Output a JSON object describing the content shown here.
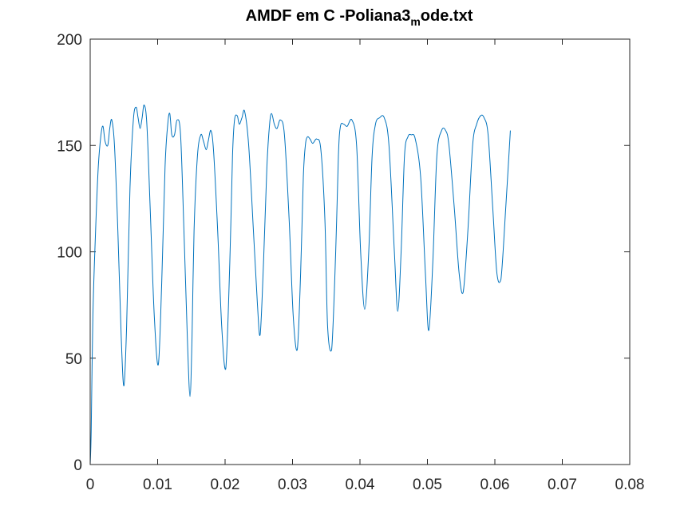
{
  "chart_data": {
    "type": "line",
    "title": {
      "main": "AMDF em C -Poliana3",
      "subscript": "m",
      "tail": "ode.txt"
    },
    "xlabel": "",
    "ylabel": "",
    "xlim": [
      0,
      0.08
    ],
    "ylim": [
      0,
      200
    ],
    "xticks": [
      "0",
      "0.01",
      "0.02",
      "0.03",
      "0.04",
      "0.05",
      "0.06",
      "0.07",
      "0.08"
    ],
    "yticks": [
      "0",
      "50",
      "100",
      "150",
      "200"
    ],
    "xtick_values": [
      0,
      0.01,
      0.02,
      0.03,
      0.04,
      0.05,
      0.06,
      0.07,
      0.08
    ],
    "ytick_values": [
      0,
      50,
      100,
      150,
      200
    ],
    "grid": false,
    "box": true,
    "series": [
      {
        "color": "#0072bd",
        "x": [
          0,
          0.00015,
          0.0004,
          0.0008,
          0.0012,
          0.0016,
          0.0019,
          0.0022,
          0.0026,
          0.0029,
          0.0032,
          0.0036,
          0.0041,
          0.0046,
          0.005,
          0.0054,
          0.0059,
          0.0064,
          0.0068,
          0.0071,
          0.0074,
          0.0077,
          0.008,
          0.0084,
          0.0089,
          0.0095,
          0.0101,
          0.0106,
          0.0111,
          0.0115,
          0.0118,
          0.0121,
          0.0125,
          0.0129,
          0.0134,
          0.0139,
          0.0144,
          0.0148,
          0.0151,
          0.0154,
          0.0159,
          0.0164,
          0.0168,
          0.0172,
          0.0175,
          0.0179,
          0.0183,
          0.0189,
          0.0195,
          0.0201,
          0.0207,
          0.0211,
          0.0214,
          0.0218,
          0.0221,
          0.0225,
          0.0229,
          0.0235,
          0.0242,
          0.0248,
          0.0252,
          0.0257,
          0.0262,
          0.0266,
          0.0269,
          0.0273,
          0.0277,
          0.0282,
          0.0288,
          0.0295,
          0.0301,
          0.0307,
          0.0312,
          0.0316,
          0.0319,
          0.0322,
          0.0326,
          0.033,
          0.0336,
          0.0342,
          0.0348,
          0.0352,
          0.0358,
          0.0364,
          0.0368,
          0.0371,
          0.0376,
          0.0381,
          0.0388,
          0.0395,
          0.0401,
          0.0407,
          0.0413,
          0.0418,
          0.0423,
          0.0429,
          0.0436,
          0.0443,
          0.0451,
          0.0456,
          0.0461,
          0.0466,
          0.0471,
          0.0476,
          0.0482,
          0.049,
          0.0497,
          0.0502,
          0.0508,
          0.0514,
          0.0521,
          0.0527,
          0.0532,
          0.054,
          0.0547,
          0.0553,
          0.056,
          0.0567,
          0.0573,
          0.0579,
          0.0584,
          0.059,
          0.0597,
          0.0603,
          0.0609,
          0.0616,
          0.0623
        ],
        "y": [
          0,
          16,
          70,
          110,
          140,
          155,
          159,
          152,
          150,
          158,
          162,
          150,
          110,
          60,
          37,
          65,
          130,
          162,
          168,
          163,
          158,
          163,
          169,
          160,
          120,
          70,
          47,
          85,
          140,
          160,
          165,
          155,
          155,
          162,
          155,
          110,
          60,
          32,
          60,
          110,
          145,
          155,
          152,
          148,
          152,
          157,
          147,
          110,
          65,
          45,
          95,
          145,
          162,
          164,
          160,
          163,
          166,
          150,
          110,
          75,
          61,
          95,
          140,
          160,
          165,
          160,
          158,
          162,
          155,
          115,
          70,
          54,
          90,
          135,
          150,
          154,
          153,
          151,
          153,
          148,
          115,
          65,
          54,
          100,
          145,
          159,
          160,
          159,
          162,
          150,
          100,
          73,
          100,
          145,
          160,
          163,
          163,
          150,
          100,
          72,
          100,
          145,
          154,
          155,
          153,
          135,
          90,
          63,
          95,
          145,
          157,
          157,
          150,
          120,
          90,
          81,
          110,
          150,
          160,
          164,
          163,
          155,
          120,
          90,
          87,
          120,
          157
        ]
      }
    ]
  }
}
